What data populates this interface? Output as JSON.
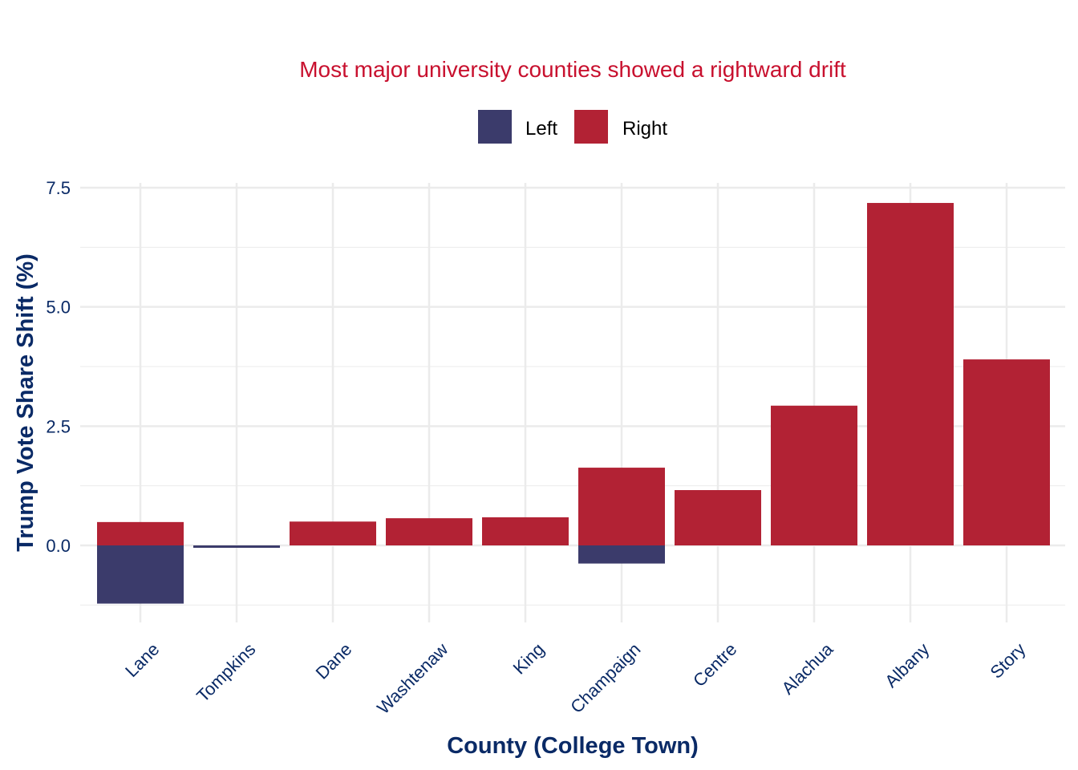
{
  "chart_data": {
    "type": "bar",
    "stacked": true,
    "title": "Most major university counties showed a rightward drift",
    "xlabel": "County (College Town)",
    "ylabel": "Trump Vote Share Shift (%)",
    "categories": [
      "Lane",
      "Tompkins",
      "Dane",
      "Washtenaw",
      "King",
      "Champaign",
      "Centre",
      "Alachua",
      "Albany",
      "Story"
    ],
    "series": [
      {
        "name": "Left",
        "color": "#3B3B6B",
        "values": [
          -1.22,
          -0.05,
          0,
          0,
          0,
          -0.38,
          0,
          0,
          0,
          0
        ]
      },
      {
        "name": "Right",
        "color": "#B22234",
        "values": [
          0.49,
          0,
          0.5,
          0.57,
          0.59,
          1.63,
          1.16,
          2.93,
          7.18,
          3.9
        ]
      }
    ],
    "ylim": [
      -1.75,
      7.75
    ],
    "yticks": [
      0.0,
      2.5,
      5.0,
      7.5
    ],
    "ytick_labels": [
      "0.0",
      "2.5",
      "5.0",
      "7.5"
    ],
    "grid": true,
    "legend": {
      "position": "top",
      "entries": [
        "Left",
        "Right"
      ]
    },
    "title_color": "#C8102E",
    "axis_text_color": "#0A2A66"
  }
}
